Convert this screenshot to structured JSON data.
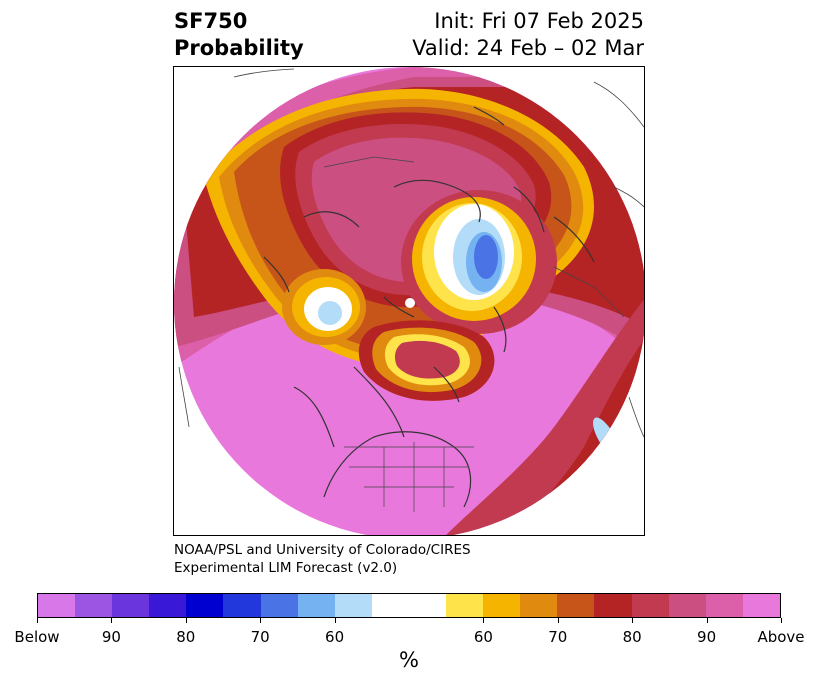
{
  "header": {
    "title_line1": "SF750",
    "title_line2": "Probability",
    "init": "Init: Fri 07 Feb 2025",
    "valid": "Valid: 24 Feb – 02 Mar"
  },
  "credit": {
    "line1": "NOAA/PSL and University of Colorado/CIRES",
    "line2": "Experimental LIM Forecast (v2.0)"
  },
  "colorbar": {
    "colors": [
      "#d878e8",
      "#9b55e2",
      "#6a35dc",
      "#3a18d8",
      "#0000d0",
      "#2238dc",
      "#4a74e6",
      "#74b2f2",
      "#b2dcf8",
      "#ffffff",
      "#ffe34a",
      "#f4b400",
      "#e08a10",
      "#c75418",
      "#b42424",
      "#c23a50",
      "#cc4f82",
      "#dc5faa",
      "#e878dc"
    ],
    "ticks": [
      "Below",
      "90",
      "80",
      "70",
      "60",
      "60",
      "70",
      "80",
      "90",
      "Above"
    ],
    "unit": "%"
  },
  "map": {
    "projection": "north-polar-stereographic",
    "background_color": "#e878dc",
    "coastline_color": "#333333"
  }
}
